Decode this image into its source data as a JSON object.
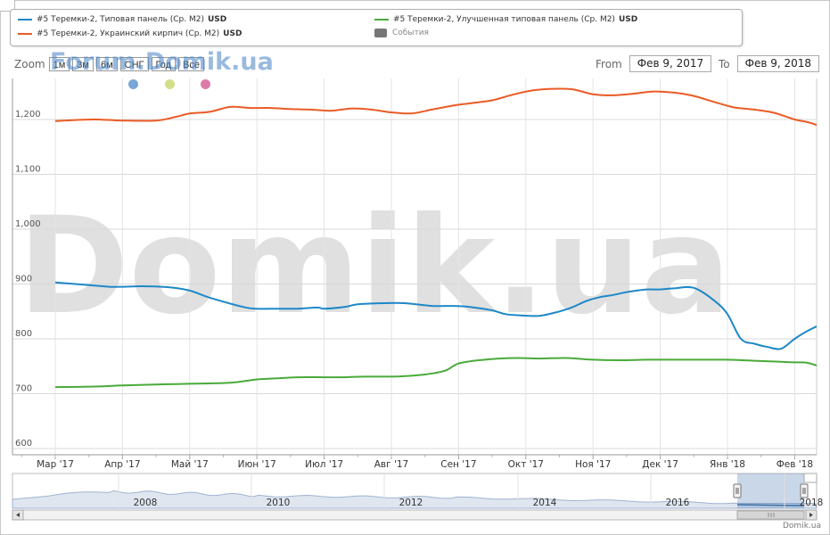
{
  "legend": {
    "items": [
      {
        "label": "#5 Теремки-2, Типовая панель (Ср. М2)",
        "unit": "USD",
        "color": "#1e88c8"
      },
      {
        "label": "#5 Теремки-2, Улучшенная типовая панель (Ср. М2)",
        "unit": "USD",
        "color": "#4aaa3a"
      },
      {
        "label": "#5 Теремки-2, Украинский кирпич (Ср. М2)",
        "unit": "USD",
        "color": "#ea5b25"
      },
      {
        "label": "События",
        "color": "#777777"
      }
    ]
  },
  "zoom": {
    "label": "Zoom",
    "buttons": [
      "1м",
      "3м",
      "6м",
      "СНГ",
      "Год",
      "Всё"
    ]
  },
  "watermark_small": "Forum.Domik.ua",
  "watermark_big": "Domik.ua",
  "range": {
    "from_label": "From",
    "from_value": "Фев 9, 2017",
    "to_label": "To",
    "to_value": "Фев 9, 2018"
  },
  "event_dots": [
    {
      "color": "#7aa6d6"
    },
    {
      "color": "#d2de88"
    },
    {
      "color": "#de7aa8"
    }
  ],
  "footer": "Domik.ua",
  "chart_data": {
    "type": "line",
    "x_labels": [
      "Мар '17",
      "Апр '17",
      "Май '17",
      "Июн '17",
      "Июл '17",
      "Авг '17",
      "Сен '17",
      "Окт '17",
      "Ноя '17",
      "Дек '17",
      "Янв '18",
      "Фев '18"
    ],
    "y_ticks": [
      "600",
      "700",
      "800",
      "900",
      "1,000",
      "1,100",
      "1,200"
    ],
    "ylim": [
      600,
      1300
    ],
    "grid": true,
    "series": [
      {
        "name": "#5 Теремки-2, Типовая панель (Ср. М2)",
        "color": "#1e88c8",
        "x": [
          0,
          0.5,
          0.8,
          1,
          1.3,
          1.7,
          2,
          2.3,
          2.8,
          3,
          3.3,
          3.6,
          3.9,
          4,
          4.3,
          4.5,
          4.9,
          5.2,
          5.6,
          5.9,
          6.1,
          6.3,
          6.5,
          6.7,
          6.9,
          7.2,
          7.5,
          7.7,
          7.9,
          8.1,
          8.3,
          8.45,
          8.65,
          8.8,
          9,
          9.2,
          9.5,
          9.8,
          10,
          10.2,
          10.4,
          10.6,
          10.8,
          11,
          11.2,
          11.45
        ],
        "values": [
          903,
          898,
          895,
          895,
          896,
          894,
          888,
          875,
          858,
          855,
          855,
          855,
          857,
          855,
          858,
          863,
          865,
          865,
          860,
          860,
          859,
          856,
          852,
          845,
          843,
          842,
          850,
          858,
          869,
          876,
          880,
          884,
          888,
          890,
          890,
          892,
          893,
          870,
          845,
          800,
          791,
          785,
          782,
          800,
          815,
          830
        ]
      },
      {
        "name": "#5 Теремки-2, Улучшенная типовая панель (Ср. М2)",
        "color": "#4aaa3a",
        "x": [
          0,
          0.6,
          1,
          1.6,
          2,
          2.6,
          3,
          3.3,
          3.6,
          4,
          4.3,
          4.6,
          5,
          5.2,
          5.5,
          5.8,
          6,
          6.3,
          6.6,
          6.9,
          7.2,
          7.6,
          8,
          8.4,
          8.8,
          9.2,
          9.6,
          10,
          10.4,
          10.8,
          11,
          11.2,
          11.45
        ],
        "values": [
          712,
          713,
          715,
          717,
          718,
          720,
          726,
          728,
          730,
          730,
          730,
          731,
          731,
          732,
          735,
          742,
          755,
          761,
          764,
          765,
          764,
          765,
          762,
          761,
          762,
          762,
          762,
          762,
          760,
          758,
          757,
          756,
          746
        ]
      },
      {
        "name": "#5 Теремки-2, Украинский кирпич (Ср. М2)",
        "color": "#ea5b25",
        "x": [
          0,
          0.3,
          0.6,
          1,
          1.5,
          1.8,
          2,
          2.3,
          2.6,
          2.9,
          3.2,
          3.5,
          3.8,
          4.1,
          4.4,
          4.7,
          5,
          5.3,
          5.6,
          5.9,
          6.2,
          6.5,
          6.8,
          7.1,
          7.4,
          7.7,
          8,
          8.3,
          8.6,
          8.9,
          9.2,
          9.5,
          9.8,
          10.1,
          10.4,
          10.7,
          11,
          11.2,
          11.45
        ],
        "values": [
          1197,
          1199,
          1200,
          1198,
          1198,
          1205,
          1211,
          1214,
          1223,
          1221,
          1221,
          1219,
          1218,
          1216,
          1220,
          1218,
          1213,
          1211,
          1218,
          1225,
          1230,
          1235,
          1245,
          1253,
          1256,
          1255,
          1246,
          1244,
          1247,
          1251,
          1249,
          1243,
          1232,
          1222,
          1218,
          1212,
          1200,
          1195,
          1185
        ]
      }
    ],
    "navigator": {
      "year_labels": [
        "2008",
        "2010",
        "2012",
        "2014",
        "2016",
        "2018"
      ]
    }
  }
}
